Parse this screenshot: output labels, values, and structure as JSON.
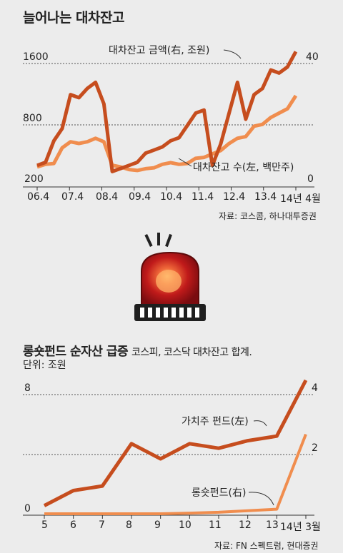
{
  "chart1": {
    "title": "늘어나는 대차잔고",
    "annotation_a": "대차잔고 금액(右, 조원)",
    "annotation_b": "대차잔고 수(左, 백만주)",
    "left_ticks": [
      "1600",
      "800",
      "200"
    ],
    "right_ticks": [
      "40",
      "0"
    ],
    "x_ticks": [
      "06.4",
      "07.4",
      "08.4",
      "09.4",
      "10.4",
      "11.4",
      "12.4",
      "13.4",
      "14년 4월"
    ],
    "source": "자료: 코스콤, 하나대투증권"
  },
  "chart2": {
    "title_bold": "롱숏펀드 순자산 급증",
    "title_sub": "코스피, 코스닥 대차잔고 합계.",
    "unit": "단위: 조원",
    "annotation_a": "가치주 펀드(左)",
    "annotation_b": "롱숏펀드(右)",
    "left_ticks": [
      "8",
      "0"
    ],
    "right_ticks": [
      "4",
      "2"
    ],
    "x_ticks": [
      "5",
      "6",
      "7",
      "8",
      "9",
      "10",
      "11",
      "12",
      "13",
      "14년 3월"
    ],
    "source": "자료: FN 스펙트럼, 현대증권"
  },
  "colors": {
    "amount_line": "#c64d1e",
    "count_line": "#f08d4e",
    "value_fund_line": "#c64d1e",
    "longshort_line": "#f08d4e"
  },
  "chart_data": [
    {
      "type": "line",
      "title": "늘어나는 대차잔고",
      "x": [
        "06.4",
        "06.10",
        "07.1",
        "07.4",
        "07.7",
        "07.10",
        "08.1",
        "08.4",
        "08.7",
        "08.10",
        "09.1",
        "09.4",
        "09.7",
        "09.10",
        "10.1",
        "10.4",
        "10.7",
        "10.10",
        "11.1",
        "11.4",
        "11.7",
        "11.10",
        "12.1",
        "12.4",
        "12.7",
        "12.10",
        "13.1",
        "13.4",
        "13.7",
        "13.10",
        "14.1",
        "14.4"
      ],
      "series": [
        {
          "name": "대차잔고 금액(右, 조원)",
          "axis": "right",
          "values": [
            7,
            8,
            15,
            19,
            30,
            29,
            32,
            34,
            27,
            5,
            6,
            7,
            8,
            11,
            12,
            13,
            15,
            16,
            20,
            24,
            25,
            7,
            14,
            24,
            34,
            22,
            30,
            32,
            38,
            37,
            39,
            44
          ]
        },
        {
          "name": "대차잔고 수(左, 백만주)",
          "axis": "left",
          "values": [
            430,
            460,
            470,
            650,
            720,
            700,
            720,
            760,
            720,
            450,
            430,
            400,
            390,
            410,
            420,
            460,
            480,
            460,
            470,
            530,
            540,
            580,
            620,
            700,
            760,
            780,
            900,
            920,
            1000,
            1050,
            1100,
            1250
          ]
        }
      ],
      "left_ylim": [
        200,
        1900
      ],
      "right_ylim": [
        0,
        48
      ]
    },
    {
      "type": "line",
      "title": "롱숏펀드 순자산 급증",
      "x": [
        "5",
        "6",
        "7",
        "8",
        "9",
        "10",
        "11",
        "12",
        "13",
        "14년 3월"
      ],
      "series": [
        {
          "name": "가치주 펀드(左)",
          "axis": "left",
          "values": [
            0.3,
            1.3,
            1.6,
            4.4,
            3.4,
            4.4,
            4.1,
            4.6,
            4.9,
            8.6
          ]
        },
        {
          "name": "롱숏펀드(右)",
          "axis": "right",
          "values": [
            0.0,
            0.0,
            0.0,
            0.0,
            0.0,
            0.02,
            0.05,
            0.1,
            0.15,
            2.6
          ]
        }
      ],
      "left_ylim": [
        0,
        8.5
      ],
      "right_ylim": [
        0,
        4.2
      ]
    }
  ]
}
